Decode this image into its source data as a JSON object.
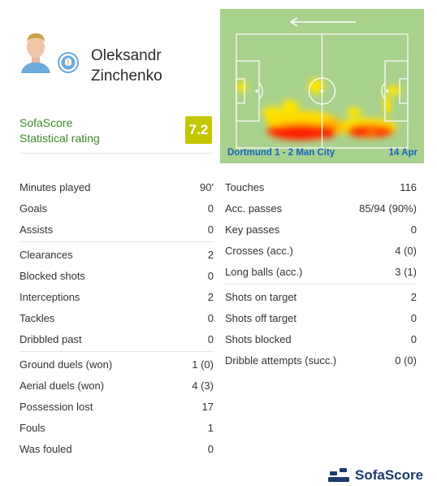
{
  "player": {
    "first_name": "Oleksandr",
    "last_name": "Zinchenko"
  },
  "rating": {
    "source": "SofaScore",
    "label": "Statistical rating",
    "value": "7.2",
    "color": "#c2c700"
  },
  "match": {
    "label": "Dortmund 1 - 2 Man City",
    "date": "14 Apr"
  },
  "stats_left": [
    [
      {
        "label": "Minutes played",
        "value": "90'"
      },
      {
        "label": "Goals",
        "value": "0"
      },
      {
        "label": "Assists",
        "value": "0"
      }
    ],
    [
      {
        "label": "Clearances",
        "value": "2"
      },
      {
        "label": "Blocked shots",
        "value": "0"
      },
      {
        "label": "Interceptions",
        "value": "2"
      },
      {
        "label": "Tackles",
        "value": "0"
      },
      {
        "label": "Dribbled past",
        "value": "0"
      }
    ],
    [
      {
        "label": "Ground duels (won)",
        "value": "1 (0)"
      },
      {
        "label": "Aerial duels (won)",
        "value": "4 (3)"
      },
      {
        "label": "Possession lost",
        "value": "17"
      },
      {
        "label": "Fouls",
        "value": "1"
      },
      {
        "label": "Was fouled",
        "value": "0"
      }
    ]
  ],
  "stats_right": [
    [
      {
        "label": "Touches",
        "value": "116"
      },
      {
        "label": "Acc. passes",
        "value": "85/94 (90%)"
      },
      {
        "label": "Key passes",
        "value": "0"
      },
      {
        "label": "Crosses (acc.)",
        "value": "4 (0)"
      },
      {
        "label": "Long balls (acc.)",
        "value": "3 (1)"
      }
    ],
    [
      {
        "label": "Shots on target",
        "value": "2"
      },
      {
        "label": "Shots off target",
        "value": "0"
      },
      {
        "label": "Shots blocked",
        "value": "0"
      },
      {
        "label": "Dribble attempts (succ.)",
        "value": "0 (0)"
      }
    ]
  ],
  "footer": {
    "brand": "SofaScore"
  },
  "colors": {
    "pitch": "#a9d18e",
    "rating_text": "#3d8a2a",
    "match_text": "#1565c0",
    "brand": "#1b3a6b"
  },
  "icons": {
    "player": "player-photo",
    "club": "man-city-crest-icon",
    "direction": "attack-direction-arrow-icon",
    "brand": "sofascore-logo-icon"
  }
}
